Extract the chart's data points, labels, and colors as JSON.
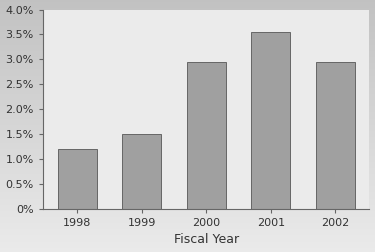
{
  "categories": [
    "1998",
    "1999",
    "2000",
    "2001",
    "2002"
  ],
  "values": [
    0.012,
    0.015,
    0.0295,
    0.0355,
    0.0295
  ],
  "bar_color": "#a0a0a0",
  "bar_edge_color": "#666666",
  "bar_edge_width": 0.7,
  "xlabel": "Fiscal Year",
  "ylabel": "",
  "ylim": [
    0,
    0.04
  ],
  "yticks": [
    0.0,
    0.005,
    0.01,
    0.015,
    0.02,
    0.025,
    0.03,
    0.035,
    0.04
  ],
  "ytick_labels": [
    "0%",
    "0.5%",
    "1.0%",
    "1.5%",
    "2.0%",
    "2.5%",
    "3.0%",
    "3.5%",
    "4.0%"
  ],
  "background_color_top": "#c8c8c8",
  "background_color_bottom": "#e8e8e8",
  "axes_bg_color": "#f0f0f0",
  "bar_width": 0.6,
  "xlabel_fontsize": 9,
  "tick_fontsize": 8,
  "spine_color": "#666666"
}
